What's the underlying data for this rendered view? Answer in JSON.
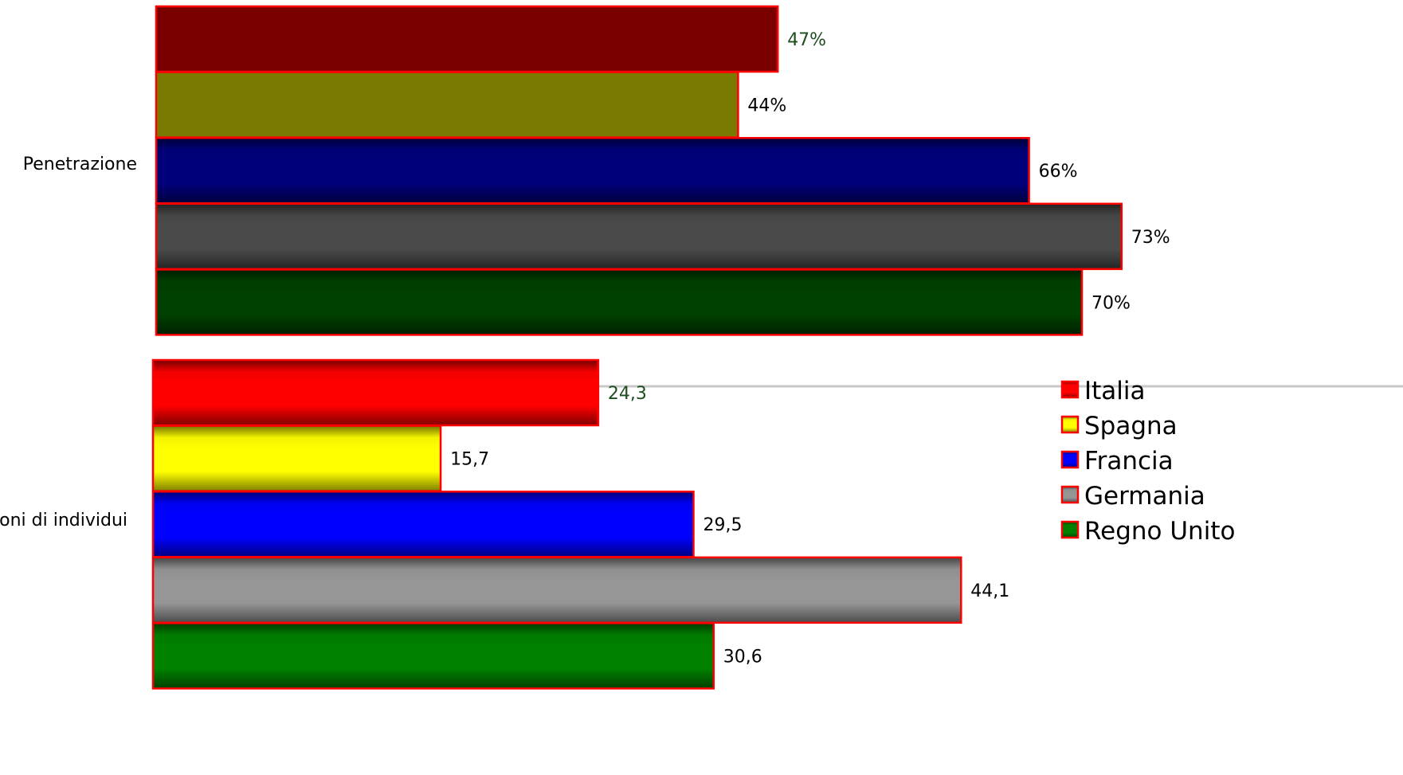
{
  "chart_data": [
    {
      "type": "bar",
      "orientation": "horizontal",
      "categories": [
        "Penetrazione"
      ],
      "series": [
        {
          "name": "Italia",
          "values": [
            47
          ],
          "label": "47%"
        },
        {
          "name": "Spagna",
          "values": [
            44
          ],
          "label": "44%"
        },
        {
          "name": "Francia",
          "values": [
            66
          ],
          "label": "66%"
        },
        {
          "name": "Germania",
          "values": [
            73
          ],
          "label": "73%"
        },
        {
          "name": "Regno Unito",
          "values": [
            70
          ],
          "label": "70%"
        }
      ],
      "unit": "%"
    },
    {
      "type": "bar",
      "orientation": "horizontal",
      "categories": [
        "Milioni di individui"
      ],
      "series": [
        {
          "name": "Italia",
          "values": [
            24.3
          ],
          "label": "24,3"
        },
        {
          "name": "Spagna",
          "values": [
            15.7
          ],
          "label": "15,7"
        },
        {
          "name": "Francia",
          "values": [
            29.5
          ],
          "label": "29,5"
        },
        {
          "name": "Germania",
          "values": [
            44.1
          ],
          "label": "44,1"
        },
        {
          "name": "Regno Unito",
          "values": [
            30.6
          ],
          "label": "30,6"
        }
      ]
    }
  ],
  "legend": {
    "position": "right",
    "items": [
      {
        "name": "Italia",
        "color": "#ff0000"
      },
      {
        "name": "Spagna",
        "color": "#ffff00"
      },
      {
        "name": "Francia",
        "color": "#0000ff"
      },
      {
        "name": "Germania",
        "color": "#969696"
      },
      {
        "name": "Regno Unito",
        "color": "#008000"
      }
    ]
  },
  "colors": {
    "panel1_bars": [
      "#7a0000",
      "#7a7a00",
      "#00007a",
      "#4a4a4a",
      "#004000"
    ],
    "panel2_bars": [
      "#ff0000",
      "#ffff00",
      "#0000ff",
      "#969696",
      "#008000"
    ],
    "bar_border": "#ff0000",
    "first_label": "#1e4d1e",
    "label": "#000000",
    "separator": "#c8c8c8"
  }
}
